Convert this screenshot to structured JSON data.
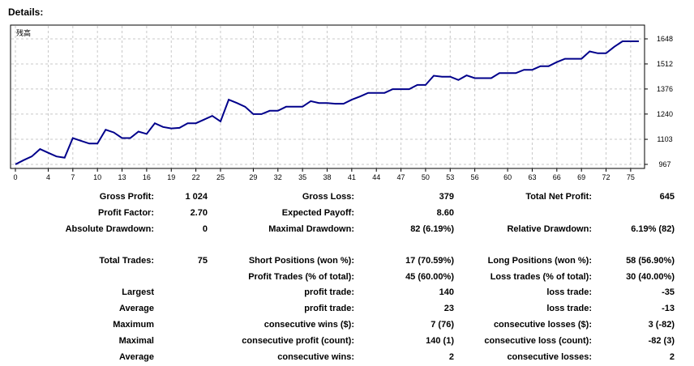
{
  "title": "Details:",
  "chart_data": {
    "type": "line",
    "legend": "残高",
    "x_ticks": [
      "0",
      "4",
      "7",
      "10",
      "13",
      "16",
      "19",
      "22",
      "25",
      "29",
      "32",
      "35",
      "38",
      "41",
      "44",
      "47",
      "50",
      "53",
      "56",
      "60",
      "63",
      "66",
      "69",
      "72",
      "75"
    ],
    "y_ticks": [
      "1648",
      "1512",
      "1376",
      "1240",
      "1103",
      "967"
    ],
    "ylim": [
      967,
      1648
    ],
    "xlim": [
      0,
      76
    ],
    "series": [
      {
        "x": [
          0,
          1,
          2,
          3,
          4,
          5,
          6,
          7,
          8,
          9,
          10,
          11,
          12,
          13,
          14,
          15,
          16,
          17,
          18,
          19,
          20,
          21,
          22,
          23,
          24,
          25,
          26,
          27,
          28,
          29,
          30,
          31,
          32,
          33,
          34,
          35,
          36,
          37,
          38,
          39,
          40,
          41,
          42,
          43,
          44,
          45,
          46,
          47,
          48,
          49,
          50,
          51,
          52,
          53,
          54,
          55,
          56,
          57,
          58,
          59,
          60,
          61,
          62,
          63,
          64,
          65,
          66,
          67,
          68,
          69,
          70,
          71,
          72,
          73,
          74,
          75,
          76
        ],
        "values": [
          967,
          990,
          1010,
          1050,
          1030,
          1010,
          1003,
          1110,
          1095,
          1080,
          1080,
          1155,
          1140,
          1110,
          1110,
          1145,
          1132,
          1190,
          1170,
          1162,
          1165,
          1190,
          1190,
          1210,
          1230,
          1200,
          1318,
          1300,
          1280,
          1240,
          1240,
          1258,
          1258,
          1280,
          1280,
          1280,
          1310,
          1300,
          1300,
          1296,
          1296,
          1318,
          1335,
          1355,
          1355,
          1355,
          1375,
          1375,
          1375,
          1398,
          1398,
          1448,
          1443,
          1443,
          1425,
          1450,
          1435,
          1435,
          1435,
          1462,
          1462,
          1462,
          1480,
          1480,
          1500,
          1500,
          1522,
          1540,
          1540,
          1540,
          1580,
          1570,
          1570,
          1605,
          1635,
          1635,
          1635
        ]
      }
    ]
  },
  "stats": {
    "gross_profit_label": "Gross Profit:",
    "gross_profit": "1 024",
    "gross_loss_label": "Gross Loss:",
    "gross_loss": "379",
    "total_net_profit_label": "Total Net Profit:",
    "total_net_profit": "645",
    "profit_factor_label": "Profit Factor:",
    "profit_factor": "2.70",
    "expected_payoff_label": "Expected Payoff:",
    "expected_payoff": "8.60",
    "absolute_drawdown_label": "Absolute Drawdown:",
    "absolute_drawdown": "0",
    "maximal_drawdown_label": "Maximal Drawdown:",
    "maximal_drawdown": "82 (6.19%)",
    "relative_drawdown_label": "Relative Drawdown:",
    "relative_drawdown": "6.19% (82)",
    "total_trades_label": "Total Trades:",
    "total_trades": "75",
    "short_positions_label": "Short Positions (won %):",
    "short_positions": "17 (70.59%)",
    "long_positions_label": "Long Positions (won %):",
    "long_positions": "58 (56.90%)",
    "profit_trades_label": "Profit Trades (% of total):",
    "profit_trades": "45 (60.00%)",
    "loss_trades_label": "Loss trades (% of total):",
    "loss_trades": "30 (40.00%)",
    "largest_label": "Largest",
    "largest_profit_label": "profit trade:",
    "largest_profit": "140",
    "largest_loss_label": "loss trade:",
    "largest_loss": "-35",
    "average_label": "Average",
    "average_profit_label": "profit trade:",
    "average_profit": "23",
    "average_loss_label": "loss trade:",
    "average_loss": "-13",
    "maximum_label": "Maximum",
    "max_cons_wins_label": "consecutive wins ($):",
    "max_cons_wins": "7 (76)",
    "max_cons_losses_label": "consecutive losses ($):",
    "max_cons_losses": "3 (-82)",
    "maximal_label": "Maximal",
    "maximal_cons_profit_label": "consecutive profit (count):",
    "maximal_cons_profit": "140 (1)",
    "maximal_cons_loss_label": "consecutive loss (count):",
    "maximal_cons_loss": "-82 (3)",
    "average2_label": "Average",
    "avg_cons_wins_label": "consecutive wins:",
    "avg_cons_wins": "2",
    "avg_cons_losses_label": "consecutive losses:",
    "avg_cons_losses": "2"
  }
}
